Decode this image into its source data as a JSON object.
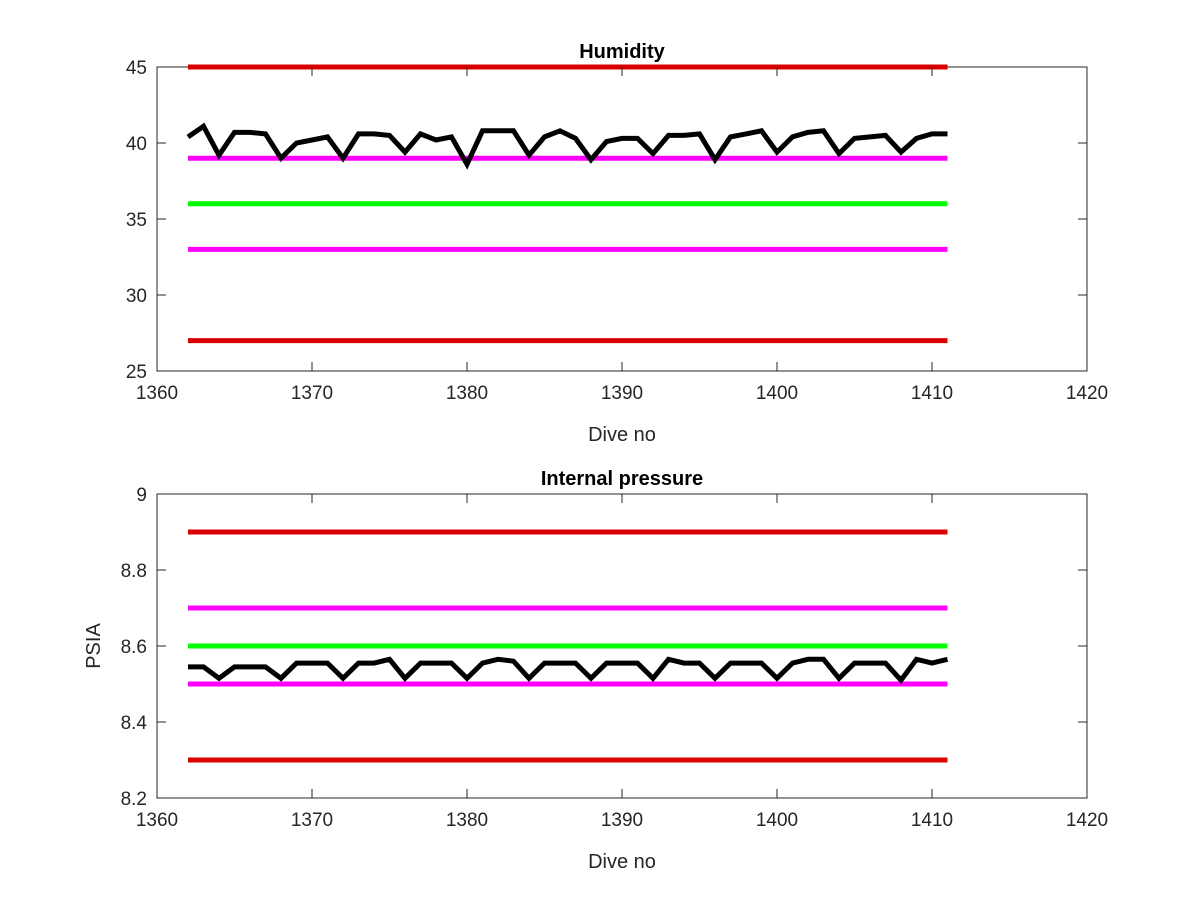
{
  "chart_data": [
    {
      "type": "line",
      "title": "Humidity",
      "xlabel": "Dive no",
      "ylabel": "",
      "xlim": [
        1360,
        1420
      ],
      "ylim": [
        25,
        45
      ],
      "xticks": [
        1360,
        1370,
        1380,
        1390,
        1400,
        1410,
        1420
      ],
      "yticks": [
        25,
        30,
        35,
        40,
        45
      ],
      "grid": false,
      "reference_lines": [
        {
          "y": 45,
          "x": [
            1362,
            1411
          ],
          "color": "#d90000"
        },
        {
          "y": 39,
          "x": [
            1362,
            1411
          ],
          "color": "#ff00ff"
        },
        {
          "y": 36,
          "x": [
            1362,
            1411
          ],
          "color": "#00ff00"
        },
        {
          "y": 33,
          "x": [
            1362,
            1411
          ],
          "color": "#ff00ff"
        },
        {
          "y": 27,
          "x": [
            1362,
            1411
          ],
          "color": "#d90000"
        }
      ],
      "series": [
        {
          "color": "#000000",
          "x": [
            1362,
            1363,
            1364,
            1365,
            1366,
            1367,
            1368,
            1369,
            1370,
            1371,
            1372,
            1373,
            1374,
            1375,
            1376,
            1377,
            1378,
            1379,
            1380,
            1381,
            1382,
            1383,
            1384,
            1385,
            1386,
            1387,
            1388,
            1389,
            1390,
            1391,
            1392,
            1393,
            1394,
            1395,
            1396,
            1397,
            1398,
            1399,
            1400,
            1401,
            1402,
            1403,
            1404,
            1405,
            1406,
            1407,
            1408,
            1409,
            1410,
            1411
          ],
          "values": [
            40.4,
            41.1,
            39.2,
            40.7,
            40.7,
            40.6,
            39.0,
            40.0,
            40.2,
            40.4,
            39.0,
            40.6,
            40.6,
            40.5,
            39.4,
            40.6,
            40.2,
            40.4,
            38.6,
            40.8,
            40.8,
            40.8,
            39.2,
            40.4,
            40.8,
            40.3,
            38.9,
            40.1,
            40.3,
            40.3,
            39.3,
            40.5,
            40.5,
            40.6,
            38.9,
            40.4,
            40.6,
            40.8,
            39.4,
            40.4,
            40.7,
            40.8,
            39.3,
            40.3,
            40.4,
            40.5,
            39.4,
            40.3,
            40.6,
            40.6
          ]
        }
      ]
    },
    {
      "type": "line",
      "title": "Internal pressure",
      "xlabel": "Dive no",
      "ylabel": "PSIA",
      "xlim": [
        1360,
        1420
      ],
      "ylim": [
        8.2,
        9.0
      ],
      "xticks": [
        1360,
        1370,
        1380,
        1390,
        1400,
        1410,
        1420
      ],
      "yticks": [
        8.2,
        8.4,
        8.6,
        8.8,
        9.0
      ],
      "ytick_labels": [
        "8.2",
        "8.4",
        "8.6",
        "8.8",
        "9"
      ],
      "grid": false,
      "reference_lines": [
        {
          "y": 8.9,
          "x": [
            1362,
            1411
          ],
          "color": "#d90000"
        },
        {
          "y": 8.7,
          "x": [
            1362,
            1411
          ],
          "color": "#ff00ff"
        },
        {
          "y": 8.6,
          "x": [
            1362,
            1411
          ],
          "color": "#00ff00"
        },
        {
          "y": 8.5,
          "x": [
            1362,
            1411
          ],
          "color": "#ff00ff"
        },
        {
          "y": 8.3,
          "x": [
            1362,
            1411
          ],
          "color": "#d90000"
        }
      ],
      "series": [
        {
          "color": "#000000",
          "x": [
            1362,
            1363,
            1364,
            1365,
            1366,
            1367,
            1368,
            1369,
            1370,
            1371,
            1372,
            1373,
            1374,
            1375,
            1376,
            1377,
            1378,
            1379,
            1380,
            1381,
            1382,
            1383,
            1384,
            1385,
            1386,
            1387,
            1388,
            1389,
            1390,
            1391,
            1392,
            1393,
            1394,
            1395,
            1396,
            1397,
            1398,
            1399,
            1400,
            1401,
            1402,
            1403,
            1404,
            1405,
            1406,
            1407,
            1408,
            1409,
            1410,
            1411
          ],
          "values": [
            8.545,
            8.545,
            8.515,
            8.545,
            8.545,
            8.545,
            8.515,
            8.555,
            8.555,
            8.555,
            8.515,
            8.555,
            8.555,
            8.565,
            8.515,
            8.555,
            8.555,
            8.555,
            8.515,
            8.555,
            8.565,
            8.56,
            8.515,
            8.555,
            8.555,
            8.555,
            8.515,
            8.555,
            8.555,
            8.555,
            8.515,
            8.565,
            8.555,
            8.555,
            8.515,
            8.555,
            8.555,
            8.555,
            8.515,
            8.555,
            8.565,
            8.565,
            8.515,
            8.555,
            8.555,
            8.555,
            8.51,
            8.565,
            8.555,
            8.565
          ]
        }
      ]
    }
  ]
}
